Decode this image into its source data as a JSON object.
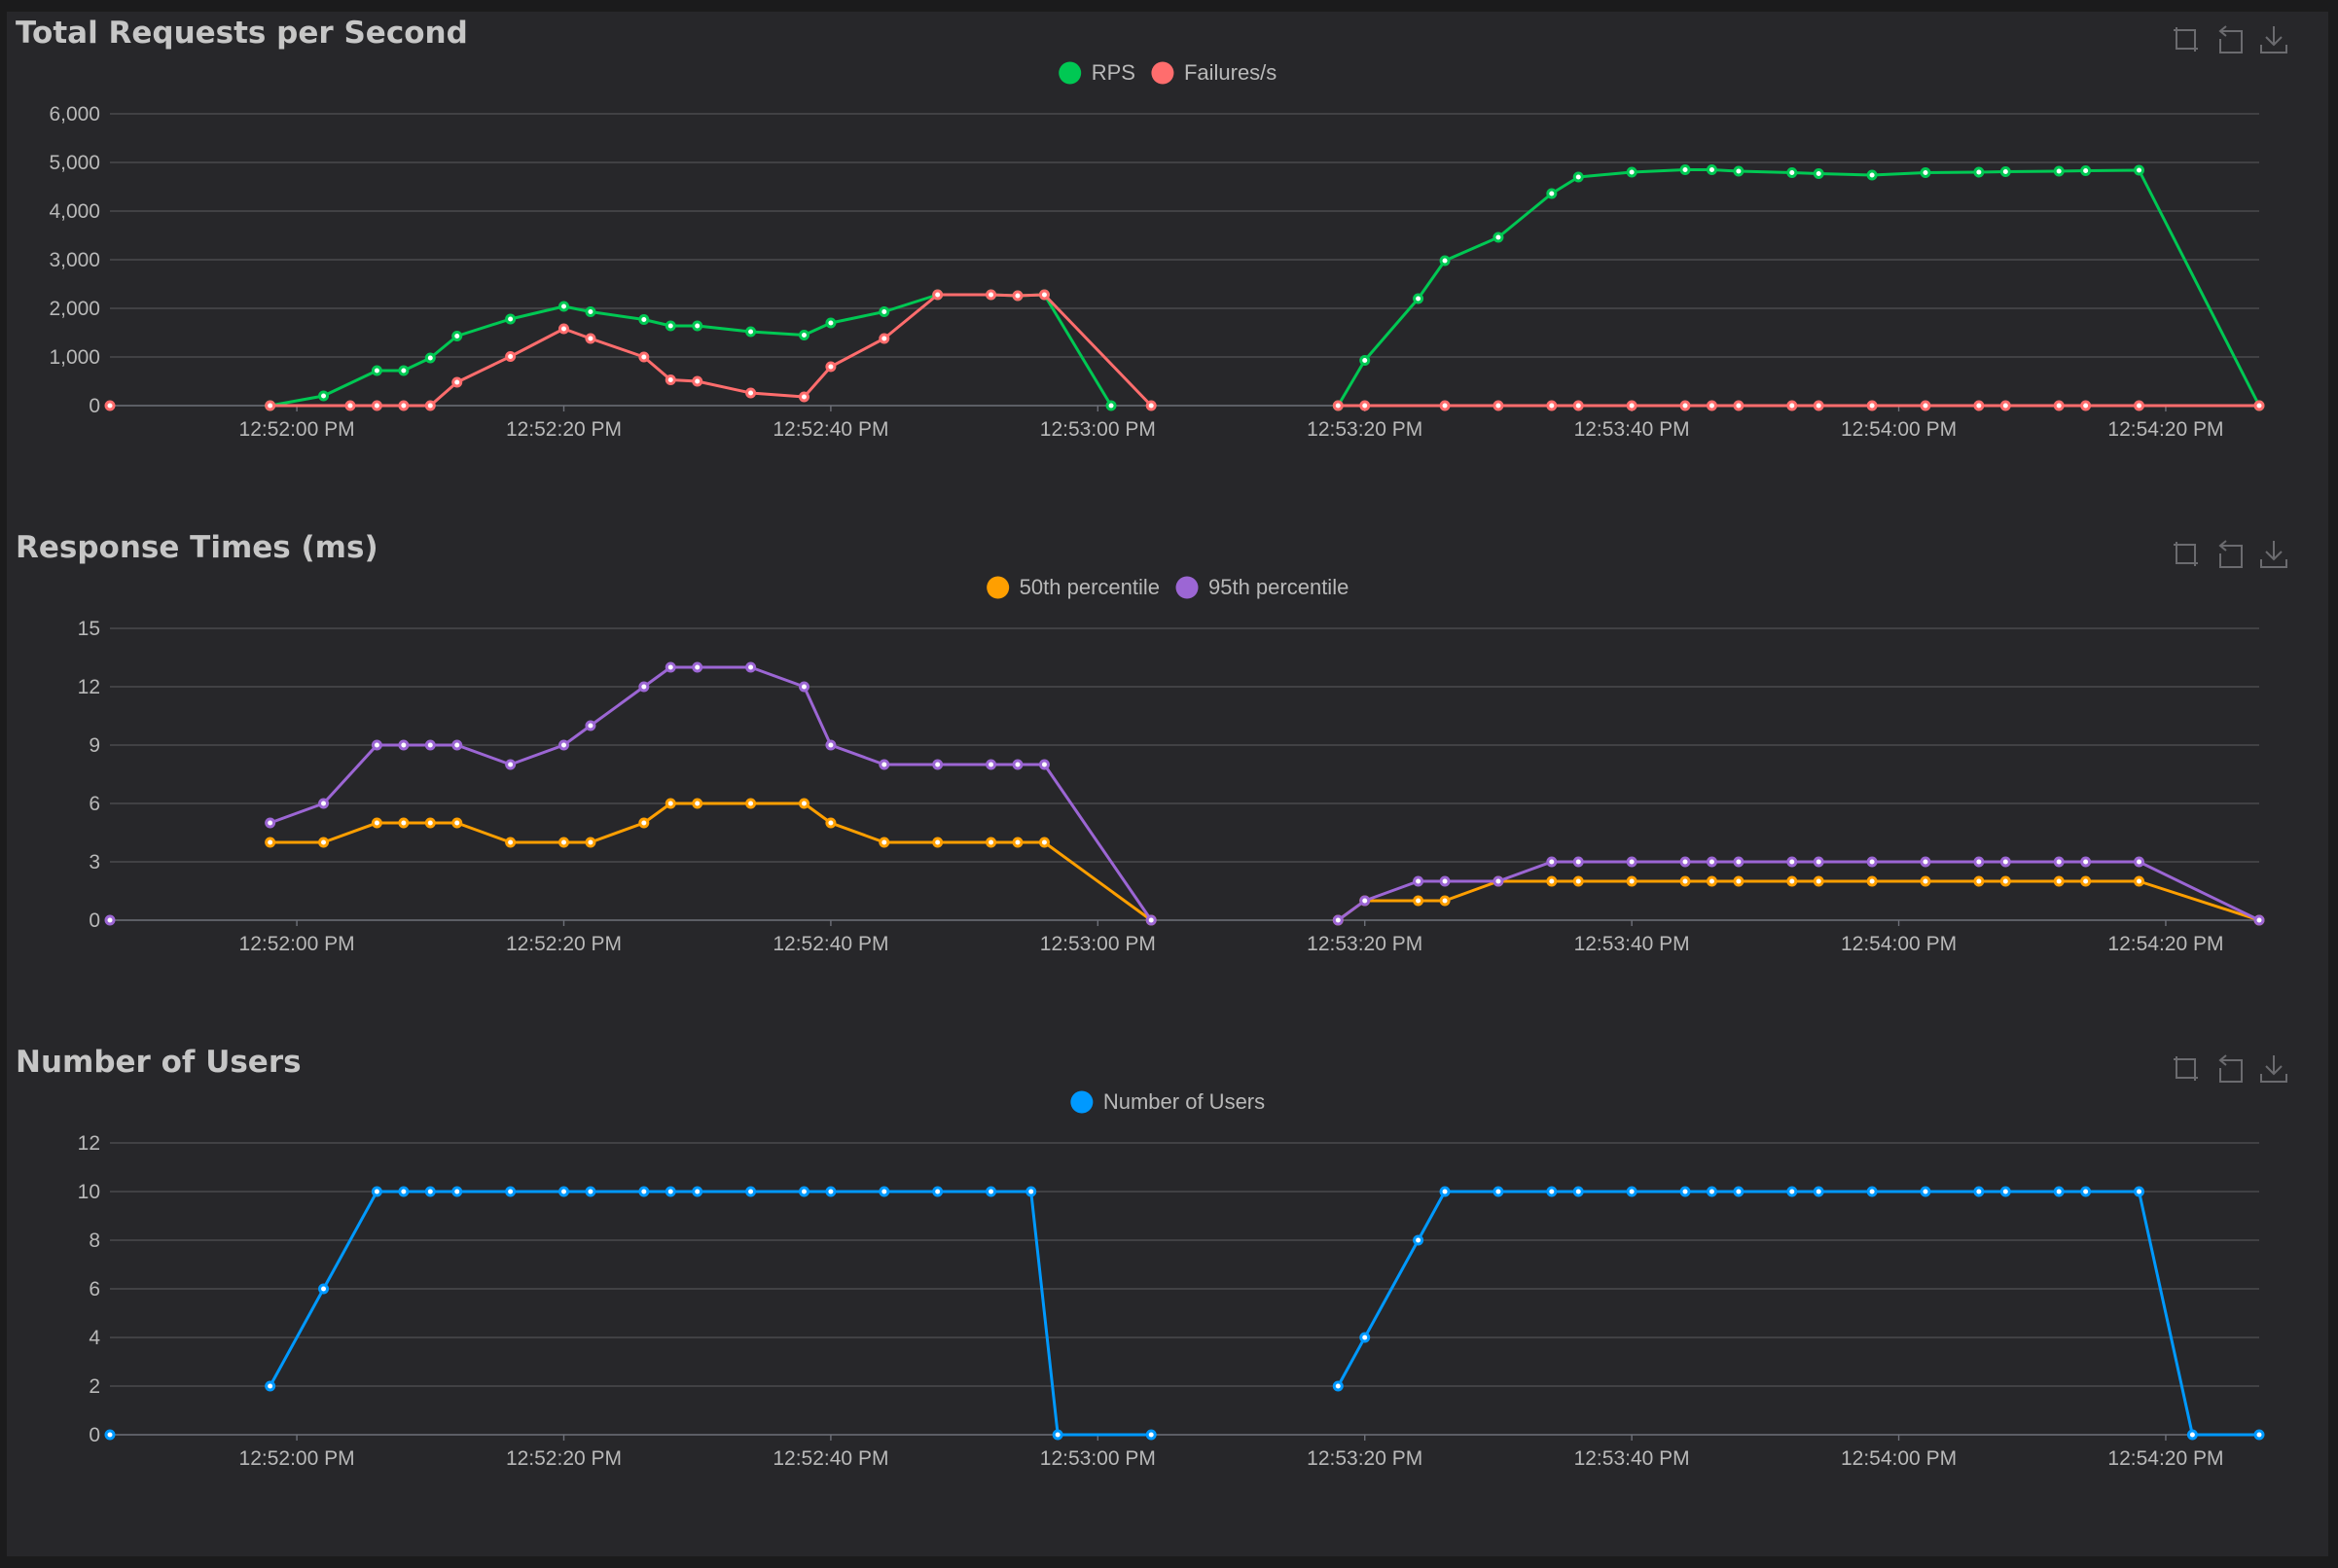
{
  "x_axis_ticks": [
    "12:52:00 PM",
    "12:52:20 PM",
    "12:52:40 PM",
    "12:53:00 PM",
    "12:53:20 PM",
    "12:53:40 PM",
    "12:54:00 PM",
    "12:54:20 PM"
  ],
  "toolbox": [
    {
      "name": "zoom-icon"
    },
    {
      "name": "zoom-reset-icon"
    },
    {
      "name": "download-icon"
    }
  ],
  "colors": {
    "background": "#27272a",
    "rps": "#00c853",
    "failures": "#ff6d6d",
    "p50": "#ff9f00",
    "p95": "#9c66d4",
    "users": "#0099ff"
  },
  "chart_data": [
    {
      "type": "line",
      "title": "Total Requests per Second",
      "x_axis": "time",
      "ylim": [
        0,
        6000
      ],
      "y_ticks": [
        "0",
        "1,000",
        "2,000",
        "3,000",
        "4,000",
        "5,000",
        "6,000"
      ],
      "legend_position": "top-center",
      "grid": true,
      "series": [
        {
          "name": "RPS",
          "color": "#00c853",
          "points": [
            [
              "12:51:58",
              0
            ],
            [
              "12:52:02",
              200
            ],
            [
              "12:52:06",
              720
            ],
            [
              "12:52:08",
              720
            ],
            [
              "12:52:10",
              980
            ],
            [
              "12:52:12",
              1430
            ],
            [
              "12:52:16",
              1780
            ],
            [
              "12:52:20",
              2040
            ],
            [
              "12:52:22",
              1930
            ],
            [
              "12:52:26",
              1770
            ],
            [
              "12:52:28",
              1640
            ],
            [
              "12:52:30",
              1640
            ],
            [
              "12:52:34",
              1520
            ],
            [
              "12:52:38",
              1450
            ],
            [
              "12:52:40",
              1700
            ],
            [
              "12:52:44",
              1930
            ],
            [
              "12:52:48",
              2280
            ],
            [
              "12:52:52",
              2280
            ],
            [
              "12:52:54",
              2260
            ],
            [
              "12:52:56",
              2280
            ],
            [
              "12:53:01",
              0
            ],
            null,
            [
              "12:53:18",
              0
            ],
            [
              "12:53:20",
              930
            ],
            [
              "12:53:24",
              2200
            ],
            [
              "12:53:26",
              2980
            ],
            [
              "12:53:30",
              3460
            ],
            [
              "12:53:34",
              4360
            ],
            [
              "12:53:36",
              4700
            ],
            [
              "12:53:40",
              4800
            ],
            [
              "12:53:44",
              4850
            ],
            [
              "12:53:46",
              4850
            ],
            [
              "12:53:48",
              4820
            ],
            [
              "12:53:52",
              4790
            ],
            [
              "12:53:54",
              4770
            ],
            [
              "12:53:58",
              4740
            ],
            [
              "12:54:02",
              4790
            ],
            [
              "12:54:06",
              4800
            ],
            [
              "12:54:08",
              4810
            ],
            [
              "12:54:12",
              4820
            ],
            [
              "12:54:14",
              4830
            ],
            [
              "12:54:18",
              4840
            ],
            [
              "12:54:27",
              0
            ]
          ]
        },
        {
          "name": "Failures/s",
          "color": "#ff6d6d",
          "points": [
            [
              "12:51:46",
              0
            ],
            null,
            [
              "12:51:58",
              0
            ],
            [
              "12:52:04",
              0
            ],
            [
              "12:52:06",
              0
            ],
            [
              "12:52:08",
              0
            ],
            [
              "12:52:10",
              0
            ],
            [
              "12:52:12",
              480
            ],
            [
              "12:52:16",
              1010
            ],
            [
              "12:52:20",
              1580
            ],
            [
              "12:52:22",
              1380
            ],
            [
              "12:52:26",
              1000
            ],
            [
              "12:52:28",
              530
            ],
            [
              "12:52:30",
              500
            ],
            [
              "12:52:34",
              260
            ],
            [
              "12:52:38",
              180
            ],
            [
              "12:52:40",
              800
            ],
            [
              "12:52:44",
              1380
            ],
            [
              "12:52:48",
              2280
            ],
            [
              "12:52:52",
              2280
            ],
            [
              "12:52:54",
              2260
            ],
            [
              "12:52:56",
              2280
            ],
            [
              "12:53:04",
              0
            ],
            null,
            [
              "12:53:18",
              0
            ],
            [
              "12:53:20",
              0
            ],
            [
              "12:53:26",
              0
            ],
            [
              "12:53:30",
              0
            ],
            [
              "12:53:34",
              0
            ],
            [
              "12:53:36",
              0
            ],
            [
              "12:53:40",
              0
            ],
            [
              "12:53:44",
              0
            ],
            [
              "12:53:46",
              0
            ],
            [
              "12:53:48",
              0
            ],
            [
              "12:53:52",
              0
            ],
            [
              "12:53:54",
              0
            ],
            [
              "12:53:58",
              0
            ],
            [
              "12:54:02",
              0
            ],
            [
              "12:54:06",
              0
            ],
            [
              "12:54:08",
              0
            ],
            [
              "12:54:12",
              0
            ],
            [
              "12:54:14",
              0
            ],
            [
              "12:54:18",
              0
            ],
            [
              "12:54:27",
              0
            ]
          ]
        }
      ]
    },
    {
      "type": "line",
      "title": "Response Times (ms)",
      "x_axis": "time",
      "ylim": [
        0,
        15
      ],
      "y_ticks": [
        "0",
        "3",
        "6",
        "9",
        "12",
        "15"
      ],
      "legend_position": "top-center",
      "grid": true,
      "series": [
        {
          "name": "50th percentile",
          "color": "#ff9f00",
          "points": [
            [
              "12:51:58",
              4
            ],
            [
              "12:52:02",
              4
            ],
            [
              "12:52:06",
              5
            ],
            [
              "12:52:08",
              5
            ],
            [
              "12:52:10",
              5
            ],
            [
              "12:52:12",
              5
            ],
            [
              "12:52:16",
              4
            ],
            [
              "12:52:20",
              4
            ],
            [
              "12:52:22",
              4
            ],
            [
              "12:52:26",
              5
            ],
            [
              "12:52:28",
              6
            ],
            [
              "12:52:30",
              6
            ],
            [
              "12:52:34",
              6
            ],
            [
              "12:52:38",
              6
            ],
            [
              "12:52:40",
              5
            ],
            [
              "12:52:44",
              4
            ],
            [
              "12:52:48",
              4
            ],
            [
              "12:52:52",
              4
            ],
            [
              "12:52:54",
              4
            ],
            [
              "12:52:56",
              4
            ],
            [
              "12:53:04",
              0
            ],
            null,
            [
              "12:53:18",
              0
            ],
            [
              "12:53:20",
              1
            ],
            [
              "12:53:24",
              1
            ],
            [
              "12:53:26",
              1
            ],
            [
              "12:53:30",
              2
            ],
            [
              "12:53:34",
              2
            ],
            [
              "12:53:36",
              2
            ],
            [
              "12:53:40",
              2
            ],
            [
              "12:53:44",
              2
            ],
            [
              "12:53:46",
              2
            ],
            [
              "12:53:48",
              2
            ],
            [
              "12:53:52",
              2
            ],
            [
              "12:53:54",
              2
            ],
            [
              "12:53:58",
              2
            ],
            [
              "12:54:02",
              2
            ],
            [
              "12:54:06",
              2
            ],
            [
              "12:54:08",
              2
            ],
            [
              "12:54:12",
              2
            ],
            [
              "12:54:14",
              2
            ],
            [
              "12:54:18",
              2
            ],
            [
              "12:54:27",
              0
            ]
          ]
        },
        {
          "name": "95th percentile",
          "color": "#9c66d4",
          "points": [
            [
              "12:51:46",
              0
            ],
            null,
            [
              "12:51:58",
              5
            ],
            [
              "12:52:02",
              6
            ],
            [
              "12:52:06",
              9
            ],
            [
              "12:52:08",
              9
            ],
            [
              "12:52:10",
              9
            ],
            [
              "12:52:12",
              9
            ],
            [
              "12:52:16",
              8
            ],
            [
              "12:52:20",
              9
            ],
            [
              "12:52:22",
              10
            ],
            [
              "12:52:26",
              12
            ],
            [
              "12:52:28",
              13
            ],
            [
              "12:52:30",
              13
            ],
            [
              "12:52:34",
              13
            ],
            [
              "12:52:38",
              12
            ],
            [
              "12:52:40",
              9
            ],
            [
              "12:52:44",
              8
            ],
            [
              "12:52:48",
              8
            ],
            [
              "12:52:52",
              8
            ],
            [
              "12:52:54",
              8
            ],
            [
              "12:52:56",
              8
            ],
            [
              "12:53:04",
              0
            ],
            null,
            [
              "12:53:18",
              0
            ],
            [
              "12:53:20",
              1
            ],
            [
              "12:53:24",
              2
            ],
            [
              "12:53:26",
              2
            ],
            [
              "12:53:30",
              2
            ],
            [
              "12:53:34",
              3
            ],
            [
              "12:53:36",
              3
            ],
            [
              "12:53:40",
              3
            ],
            [
              "12:53:44",
              3
            ],
            [
              "12:53:46",
              3
            ],
            [
              "12:53:48",
              3
            ],
            [
              "12:53:52",
              3
            ],
            [
              "12:53:54",
              3
            ],
            [
              "12:53:58",
              3
            ],
            [
              "12:54:02",
              3
            ],
            [
              "12:54:06",
              3
            ],
            [
              "12:54:08",
              3
            ],
            [
              "12:54:12",
              3
            ],
            [
              "12:54:14",
              3
            ],
            [
              "12:54:18",
              3
            ],
            [
              "12:54:27",
              0
            ]
          ]
        }
      ]
    },
    {
      "type": "line",
      "title": "Number of Users",
      "x_axis": "time",
      "ylim": [
        0,
        12
      ],
      "y_ticks": [
        "0",
        "2",
        "4",
        "6",
        "8",
        "10",
        "12"
      ],
      "legend_position": "top-center",
      "grid": true,
      "series": [
        {
          "name": "Number of Users",
          "color": "#0099ff",
          "points": [
            [
              "12:51:46",
              0
            ],
            null,
            [
              "12:51:58",
              2
            ],
            [
              "12:52:02",
              6
            ],
            [
              "12:52:06",
              10
            ],
            [
              "12:52:08",
              10
            ],
            [
              "12:52:10",
              10
            ],
            [
              "12:52:12",
              10
            ],
            [
              "12:52:16",
              10
            ],
            [
              "12:52:20",
              10
            ],
            [
              "12:52:22",
              10
            ],
            [
              "12:52:26",
              10
            ],
            [
              "12:52:28",
              10
            ],
            [
              "12:52:30",
              10
            ],
            [
              "12:52:34",
              10
            ],
            [
              "12:52:38",
              10
            ],
            [
              "12:52:40",
              10
            ],
            [
              "12:52:44",
              10
            ],
            [
              "12:52:48",
              10
            ],
            [
              "12:52:52",
              10
            ],
            [
              "12:52:55",
              10
            ],
            [
              "12:52:57",
              0
            ],
            [
              "12:53:04",
              0
            ],
            null,
            [
              "12:53:18",
              2
            ],
            [
              "12:53:20",
              4
            ],
            [
              "12:53:24",
              8
            ],
            [
              "12:53:26",
              10
            ],
            [
              "12:53:30",
              10
            ],
            [
              "12:53:34",
              10
            ],
            [
              "12:53:36",
              10
            ],
            [
              "12:53:40",
              10
            ],
            [
              "12:53:44",
              10
            ],
            [
              "12:53:46",
              10
            ],
            [
              "12:53:48",
              10
            ],
            [
              "12:53:52",
              10
            ],
            [
              "12:53:54",
              10
            ],
            [
              "12:53:58",
              10
            ],
            [
              "12:54:02",
              10
            ],
            [
              "12:54:06",
              10
            ],
            [
              "12:54:08",
              10
            ],
            [
              "12:54:12",
              10
            ],
            [
              "12:54:14",
              10
            ],
            [
              "12:54:18",
              10
            ],
            [
              "12:54:22",
              0
            ],
            [
              "12:54:27",
              0
            ]
          ]
        }
      ]
    }
  ]
}
